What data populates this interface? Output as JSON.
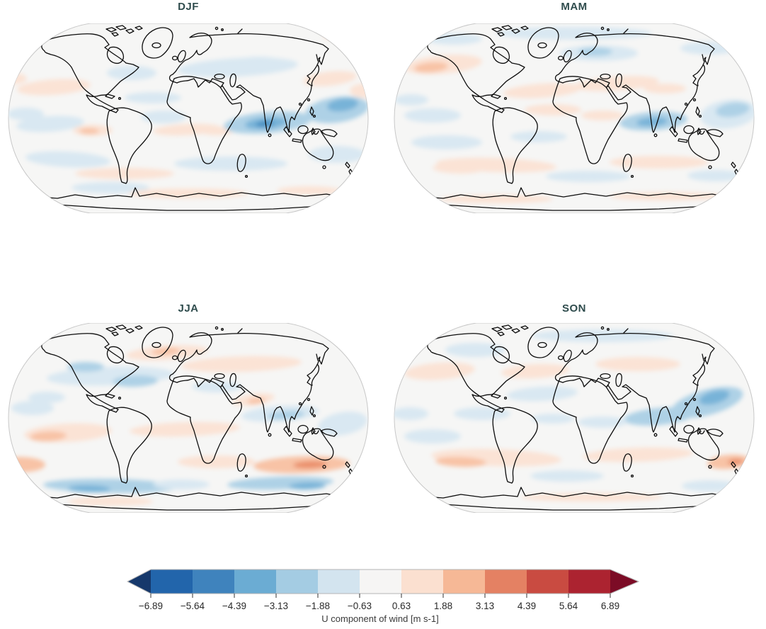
{
  "figure": {
    "panels": [
      {
        "title": "DJF"
      },
      {
        "title": "MAM"
      },
      {
        "title": "JJA"
      },
      {
        "title": "SON"
      }
    ],
    "colors": {
      "title_text": "#2f4c4d",
      "tick_text": "#2a2a2a",
      "label_text": "#3a3a3a",
      "map_background": "#f6f6f5",
      "map_edge": "#c8c8c8",
      "coastline": "#0d0d0d"
    }
  },
  "chart_data": {
    "type": "heatmap",
    "subtype": "filled-contour-world-maps",
    "projection": "Robinson",
    "title": "",
    "variable": "U component of wind",
    "units": "m s-1",
    "panel_titles": [
      "DJF",
      "MAM",
      "JJA",
      "SON"
    ],
    "colorbar": {
      "label": "U component of wind [m s-1]",
      "orientation": "horizontal",
      "extend": "both",
      "tick_labels": [
        "−6.89",
        "−5.64",
        "−4.39",
        "−3.13",
        "−1.88",
        "−0.63",
        "0.63",
        "1.88",
        "3.13",
        "4.39",
        "5.64",
        "6.89"
      ],
      "tick_values": [
        -6.89,
        -5.64,
        -4.39,
        -3.13,
        -1.88,
        -0.63,
        0.63,
        1.88,
        3.13,
        4.39,
        5.64,
        6.89
      ],
      "segment_colors": [
        "#2265ab",
        "#3f83bd",
        "#6bacd3",
        "#a4cce3",
        "#d3e4ef",
        "#f6f5f4",
        "#fbe0d0",
        "#f6b896",
        "#e48163",
        "#c94b41",
        "#ac2330"
      ],
      "extend_left_color": "#16386b",
      "extend_right_color": "#7c0c26",
      "outline_color": "#b4b4b4",
      "tick_color": "#333333"
    },
    "level_colors": {
      "-4": "#4a90c2",
      "-3": "#78b3d8",
      "-2": "#aed1e6",
      "-1": "#d9e8f2",
      "1": "#fbe3d5",
      "2": "#f8c3a6",
      "3": "#ea8f6b",
      "4": "#d75f4a"
    },
    "panels": [
      {
        "season": "DJF",
        "blobs": [
          [
            70,
            90,
            52,
            11,
            -4,
            1
          ],
          [
            12,
            78,
            20,
            8,
            0,
            1
          ],
          [
            330,
            62,
            85,
            13,
            -3,
            -1
          ],
          [
            360,
            55,
            35,
            8,
            0,
            -1
          ],
          [
            180,
            70,
            35,
            10,
            0,
            -1
          ],
          [
            460,
            78,
            38,
            10,
            -6,
            1
          ],
          [
            508,
            95,
            20,
            10,
            0,
            1
          ],
          [
            480,
            18,
            30,
            6,
            0,
            1
          ],
          [
            30,
            128,
            26,
            9,
            0,
            -1
          ],
          [
            65,
            142,
            48,
            11,
            -4,
            -1
          ],
          [
            210,
            105,
            40,
            8,
            0,
            -1
          ],
          [
            225,
            132,
            32,
            9,
            0,
            -1
          ],
          [
            258,
            150,
            48,
            8,
            -3,
            1
          ],
          [
            300,
            152,
            24,
            6,
            0,
            1
          ],
          [
            125,
            151,
            28,
            8,
            0,
            1
          ],
          [
            120,
            152,
            14,
            4,
            0,
            2
          ],
          [
            372,
            140,
            62,
            15,
            -5,
            -2
          ],
          [
            370,
            141,
            30,
            8,
            -5,
            -3
          ],
          [
            368,
            142,
            13,
            4,
            -5,
            -4
          ],
          [
            470,
            122,
            45,
            18,
            -8,
            -2
          ],
          [
            478,
            115,
            22,
            9,
            -8,
            -3
          ],
          [
            90,
            192,
            60,
            11,
            3,
            -1
          ],
          [
            320,
            198,
            80,
            10,
            0,
            -1
          ],
          [
            470,
            185,
            40,
            12,
            0,
            -1
          ],
          [
            150,
            232,
            55,
            8,
            0,
            -1
          ],
          [
            170,
            212,
            70,
            8,
            0,
            1
          ],
          [
            260,
            240,
            85,
            7,
            0,
            1
          ],
          [
            430,
            236,
            45,
            6,
            0,
            1
          ]
        ]
      },
      {
        "season": "MAM",
        "blobs": [
          [
            75,
            58,
            55,
            13,
            -5,
            1
          ],
          [
            58,
            62,
            24,
            7,
            -5,
            2
          ],
          [
            260,
            14,
            110,
            9,
            0,
            -1
          ],
          [
            90,
            22,
            40,
            8,
            0,
            -1
          ],
          [
            295,
            42,
            55,
            11,
            0,
            -1
          ],
          [
            290,
            40,
            24,
            6,
            0,
            -2
          ],
          [
            450,
            35,
            40,
            9,
            0,
            -1
          ],
          [
            215,
            95,
            55,
            10,
            -4,
            1
          ],
          [
            320,
            85,
            60,
            10,
            -4,
            1
          ],
          [
            388,
            92,
            30,
            7,
            0,
            1
          ],
          [
            230,
            122,
            40,
            8,
            0,
            1
          ],
          [
            300,
            130,
            30,
            7,
            0,
            1
          ],
          [
            210,
            160,
            40,
            8,
            0,
            -1
          ],
          [
            372,
            138,
            48,
            13,
            -4,
            -2
          ],
          [
            370,
            139,
            22,
            6,
            -4,
            -3
          ],
          [
            478,
            128,
            40,
            20,
            -8,
            -1
          ],
          [
            484,
            122,
            24,
            10,
            -8,
            -2
          ],
          [
            60,
            130,
            40,
            10,
            0,
            -1
          ],
          [
            30,
            108,
            24,
            8,
            0,
            -1
          ],
          [
            150,
            200,
            85,
            10,
            2,
            1
          ],
          [
            95,
            205,
            35,
            7,
            2,
            1
          ],
          [
            380,
            196,
            70,
            9,
            0,
            1
          ],
          [
            80,
            168,
            50,
            10,
            0,
            -1
          ],
          [
            280,
            216,
            60,
            8,
            0,
            -1
          ],
          [
            460,
            215,
            40,
            8,
            0,
            -1
          ],
          [
            150,
            248,
            80,
            6,
            0,
            1
          ],
          [
            390,
            244,
            80,
            6,
            0,
            1
          ]
        ]
      },
      {
        "season": "JJA",
        "blobs": [
          [
            150,
            75,
            90,
            13,
            -2,
            -1
          ],
          [
            185,
            82,
            32,
            8,
            -2,
            -2
          ],
          [
            115,
            62,
            26,
            7,
            0,
            -2
          ],
          [
            230,
            42,
            58,
            10,
            -4,
            1
          ],
          [
            228,
            40,
            20,
            5,
            -4,
            2
          ],
          [
            335,
            58,
            85,
            11,
            -2,
            1
          ],
          [
            300,
            90,
            35,
            8,
            0,
            -1
          ],
          [
            40,
            120,
            30,
            10,
            0,
            -1
          ],
          [
            60,
            105,
            26,
            8,
            0,
            -1
          ],
          [
            352,
            108,
            30,
            8,
            -8,
            1
          ],
          [
            356,
            110,
            13,
            4,
            -8,
            2
          ],
          [
            390,
            128,
            55,
            11,
            -4,
            -1
          ],
          [
            398,
            130,
            26,
            6,
            -4,
            -2
          ],
          [
            478,
            142,
            35,
            16,
            -10,
            -1
          ],
          [
            90,
            155,
            62,
            13,
            -3,
            1
          ],
          [
            62,
            160,
            26,
            7,
            -3,
            2
          ],
          [
            255,
            150,
            78,
            10,
            -2,
            1
          ],
          [
            22,
            200,
            36,
            11,
            0,
            2
          ],
          [
            300,
            196,
            55,
            9,
            0,
            1
          ],
          [
            420,
            200,
            68,
            12,
            -2,
            2
          ],
          [
            432,
            200,
            24,
            5,
            -2,
            3
          ],
          [
            150,
            230,
            95,
            10,
            1,
            -2
          ],
          [
            120,
            234,
            30,
            5,
            1,
            -3
          ],
          [
            390,
            226,
            75,
            9,
            -2,
            -2
          ],
          [
            428,
            230,
            26,
            5,
            -2,
            -3
          ],
          [
            250,
            228,
            40,
            7,
            0,
            -1
          ],
          [
            150,
            252,
            60,
            6,
            0,
            1
          ]
        ]
      },
      {
        "season": "SON",
        "blobs": [
          [
            300,
            18,
            100,
            9,
            0,
            -1
          ],
          [
            120,
            38,
            42,
            10,
            0,
            -1
          ],
          [
            70,
            68,
            50,
            12,
            -4,
            1
          ],
          [
            205,
            68,
            48,
            10,
            -3,
            1
          ],
          [
            350,
            58,
            60,
            10,
            0,
            1
          ],
          [
            215,
            100,
            50,
            10,
            -3,
            -1
          ],
          [
            28,
            128,
            26,
            9,
            0,
            -1
          ],
          [
            130,
            128,
            40,
            9,
            0,
            -1
          ],
          [
            230,
            135,
            30,
            7,
            0,
            -1
          ],
          [
            448,
            112,
            52,
            18,
            -15,
            -2
          ],
          [
            458,
            105,
            22,
            9,
            -15,
            -3
          ],
          [
            380,
            132,
            50,
            12,
            -5,
            -2
          ],
          [
            300,
            140,
            35,
            8,
            0,
            -1
          ],
          [
            150,
            190,
            92,
            12,
            2,
            1
          ],
          [
            100,
            196,
            36,
            7,
            2,
            2
          ],
          [
            350,
            186,
            78,
            10,
            -2,
            1
          ],
          [
            478,
            196,
            30,
            10,
            -5,
            2
          ],
          [
            488,
            196,
            11,
            4,
            -5,
            3
          ],
          [
            60,
            160,
            40,
            10,
            0,
            -1
          ],
          [
            250,
            216,
            52,
            8,
            0,
            -1
          ],
          [
            452,
            230,
            40,
            8,
            0,
            -1
          ],
          [
            285,
            246,
            100,
            6,
            0,
            1
          ]
        ]
      }
    ]
  }
}
